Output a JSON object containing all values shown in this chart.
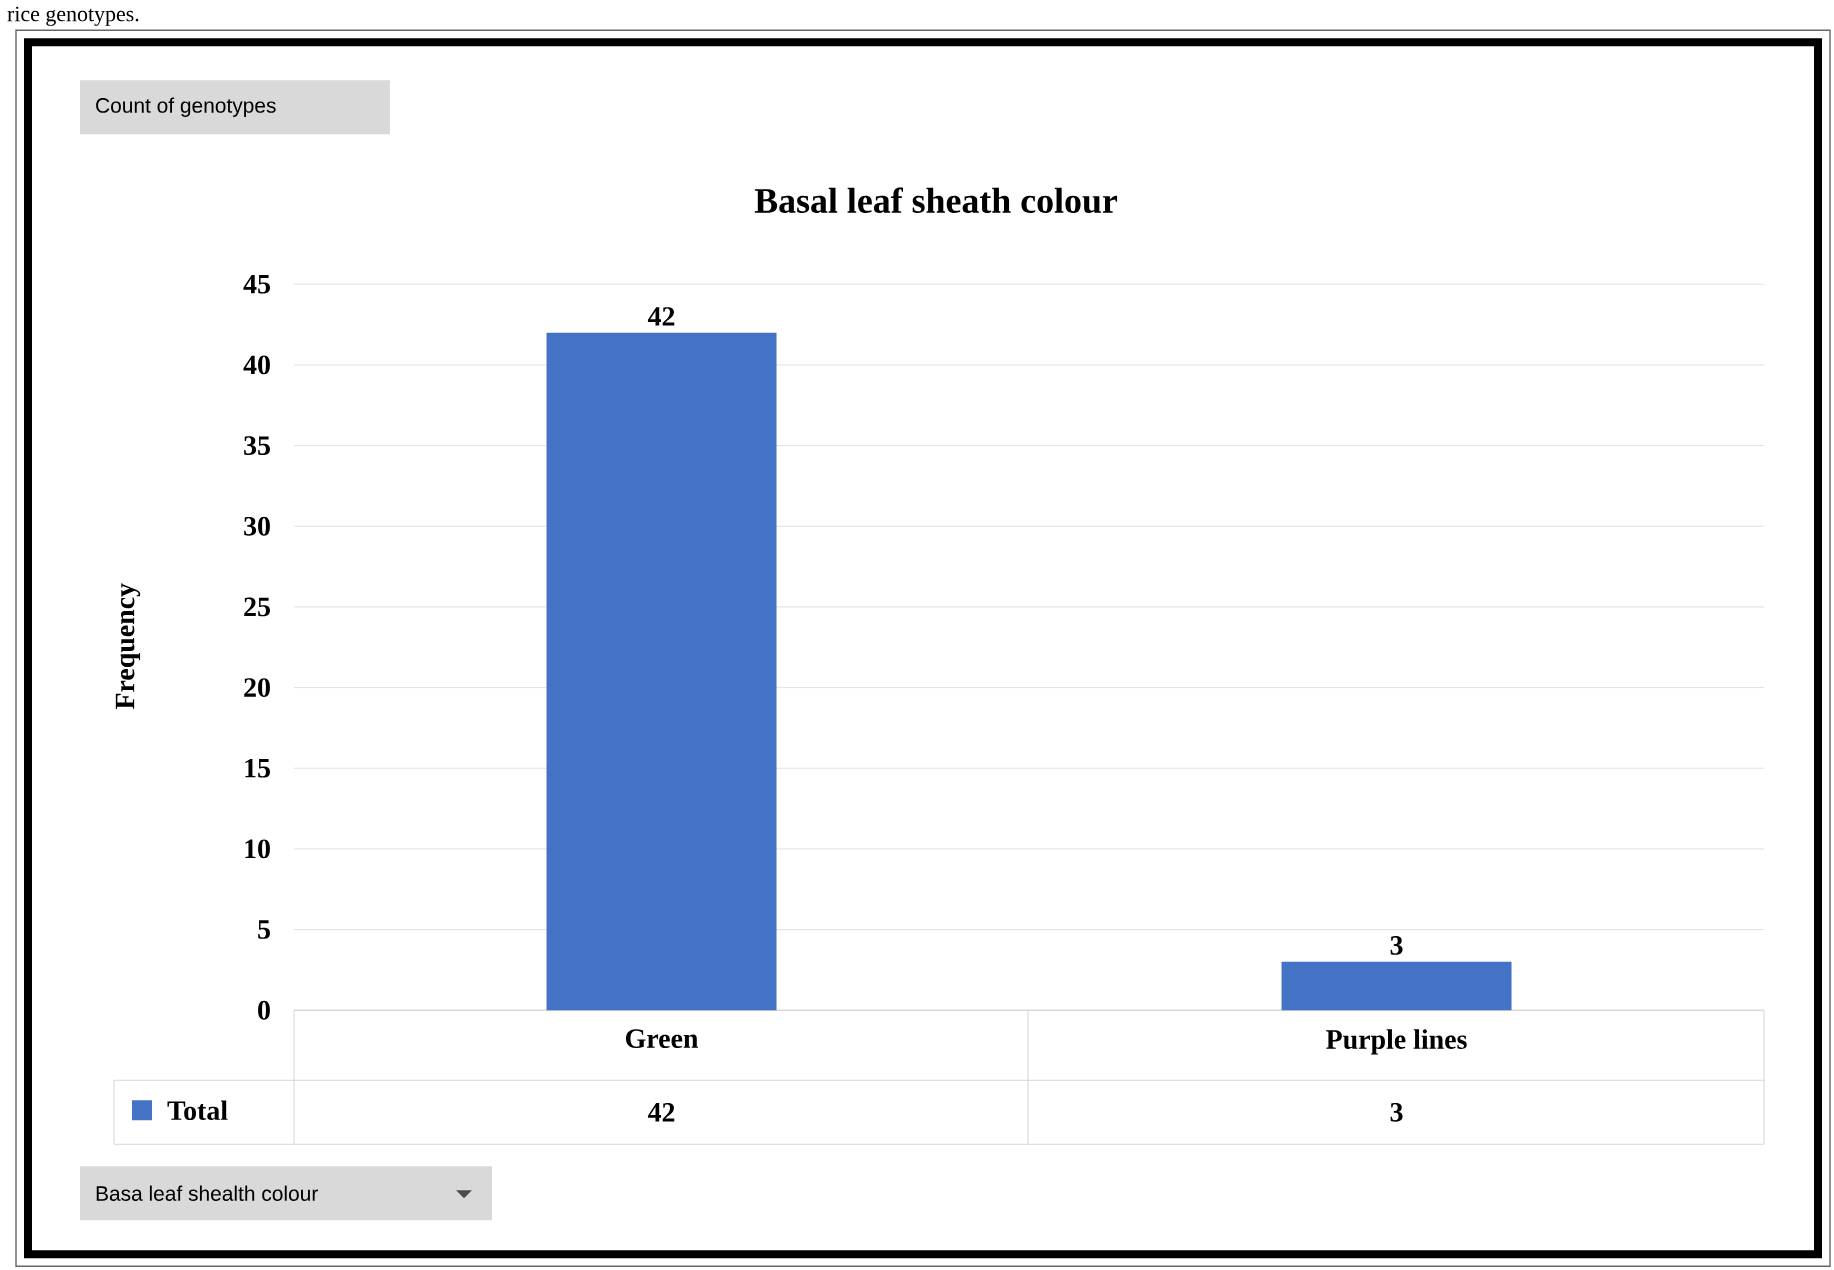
{
  "chart_data": {
    "type": "bar",
    "title": "Basal leaf sheath colour",
    "ylabel": "Frequency",
    "categories": [
      "Green",
      "Purple lines"
    ],
    "series": [
      {
        "name": "Total",
        "color": "#4472c4",
        "values": [
          42,
          3
        ],
        "value_labels": [
          "42",
          "3"
        ]
      }
    ],
    "ylim": [
      0,
      45
    ],
    "yticks": [
      0,
      5,
      10,
      15,
      20,
      25,
      30,
      35,
      40,
      45
    ],
    "grid": "y",
    "data_labels": true,
    "legend": "bottom",
    "annotations": [
      "rice genotypes.",
      "Count of genotypes",
      "Basa leaf shealth colour"
    ]
  }
}
